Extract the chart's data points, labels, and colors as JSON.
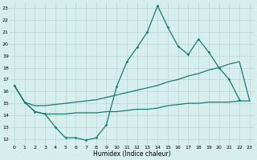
{
  "title": "",
  "xlabel": "Humidex (Indice chaleur)",
  "background_color": "#d6eeec",
  "grid_color": "#b8d8d4",
  "line_color": "#1a7a6e",
  "xlim": [
    -0.5,
    23.5
  ],
  "ylim": [
    11.5,
    23.5
  ],
  "xticks": [
    0,
    1,
    2,
    3,
    4,
    5,
    6,
    7,
    8,
    9,
    10,
    11,
    12,
    13,
    14,
    15,
    16,
    17,
    18,
    19,
    20,
    21,
    22,
    23
  ],
  "yticks": [
    12,
    13,
    14,
    15,
    16,
    17,
    18,
    19,
    20,
    21,
    22,
    23
  ],
  "line1_x": [
    0,
    1,
    2,
    3,
    4,
    5,
    6,
    7,
    8,
    9,
    10,
    11,
    12,
    13,
    14,
    15,
    16,
    17,
    18,
    19,
    20,
    21,
    22
  ],
  "line1_y": [
    16.5,
    15.1,
    14.3,
    14.1,
    13.0,
    12.1,
    12.1,
    11.9,
    12.1,
    13.2,
    16.4,
    18.5,
    19.7,
    21.0,
    23.2,
    21.4,
    19.8,
    19.1,
    20.4,
    19.3,
    18.0,
    17.0,
    15.3
  ],
  "line2_x": [
    0,
    1,
    2,
    3,
    4,
    5,
    6,
    7,
    8,
    9,
    10,
    11,
    12,
    13,
    14,
    15,
    16,
    17,
    18,
    19,
    20,
    21,
    22,
    23
  ],
  "line2_y": [
    16.5,
    15.1,
    14.8,
    14.8,
    14.9,
    15.0,
    15.1,
    15.2,
    15.3,
    15.5,
    15.7,
    15.9,
    16.1,
    16.3,
    16.5,
    16.8,
    17.0,
    17.3,
    17.5,
    17.8,
    18.0,
    18.3,
    18.5,
    15.2
  ],
  "line3_x": [
    0,
    1,
    2,
    3,
    4,
    5,
    6,
    7,
    8,
    9,
    10,
    11,
    12,
    13,
    14,
    15,
    16,
    17,
    18,
    19,
    20,
    21,
    22,
    23
  ],
  "line3_y": [
    16.5,
    15.1,
    14.3,
    14.1,
    14.1,
    14.1,
    14.2,
    14.2,
    14.2,
    14.3,
    14.3,
    14.4,
    14.5,
    14.5,
    14.6,
    14.8,
    14.9,
    15.0,
    15.0,
    15.1,
    15.1,
    15.1,
    15.2,
    15.2
  ]
}
